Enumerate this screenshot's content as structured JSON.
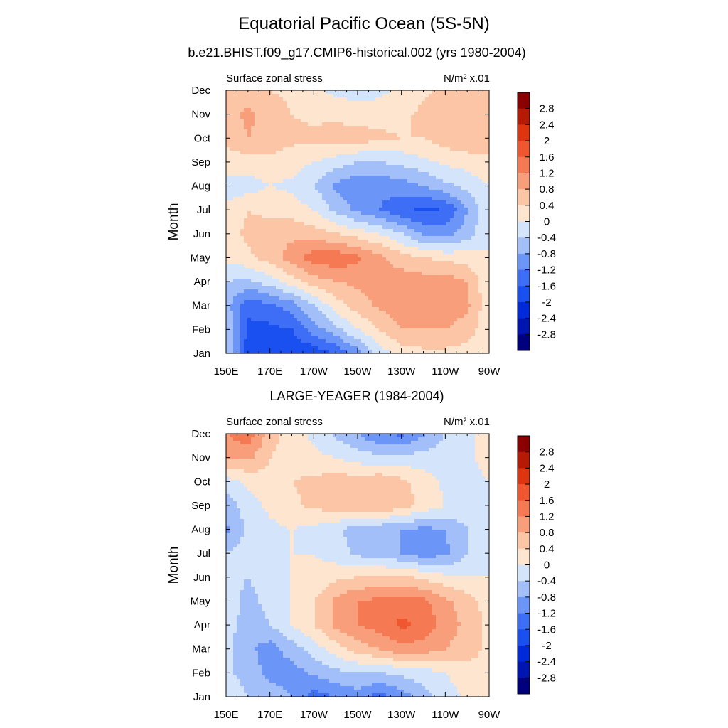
{
  "title": "Equatorial Pacific Ocean (5S-5N)",
  "colors": {
    "levels": [
      "#00007f",
      "#0014b0",
      "#0029d9",
      "#1a4ff0",
      "#3d6ef5",
      "#6b95f7",
      "#a3bffa",
      "#d4e4fb",
      "#fde5d0",
      "#fbc5a6",
      "#f89e7b",
      "#f57a53",
      "#f0562f",
      "#dc3510",
      "#b51a04",
      "#8a0000"
    ]
  },
  "chart_data": [
    {
      "type": "heatmap",
      "title": "b.e21.BHIST.f09_g17.CMIP6-historical.002 (yrs 1980-2004)",
      "left_label": "Surface zonal stress",
      "right_label": "N/m² x.01",
      "ylabel": "Month",
      "xlabel": "",
      "x": [
        150,
        160,
        170,
        180,
        190,
        200,
        210,
        220,
        230,
        240,
        250,
        260,
        270
      ],
      "x_tick_labels": [
        "150E",
        "170E",
        "170W",
        "150W",
        "130W",
        "110W",
        "90W"
      ],
      "y_tick_labels": [
        "Jan",
        "Feb",
        "Mar",
        "Apr",
        "May",
        "Jun",
        "Jul",
        "Aug",
        "Sep",
        "Oct",
        "Nov",
        "Dec"
      ],
      "xlim": [
        150,
        270
      ],
      "ylim": [
        1,
        12
      ],
      "levels": [
        -2.8,
        -2.4,
        -2.0,
        -1.6,
        -1.2,
        -0.8,
        -0.4,
        0,
        0.4,
        0.8,
        1.2,
        1.6,
        2.0,
        2.4,
        2.8
      ],
      "colorbar_labels": [
        "2.8",
        "2.4",
        "2",
        "1.6",
        "1.2",
        "0.8",
        "0.4",
        "0",
        "-0.4",
        "-0.8",
        "-1.2",
        "-1.6",
        "-2",
        "-2.4",
        "-2.8"
      ],
      "z": [
        [
          -0.4,
          -1.8,
          -1.7,
          -1.9,
          -1.9,
          -1.6,
          -1.0,
          -0.2,
          0.2,
          0.3,
          0.3,
          0.2,
          0.1
        ],
        [
          -0.4,
          -1.7,
          -1.7,
          -1.6,
          -1.0,
          -0.5,
          0.0,
          0.4,
          0.8,
          0.8,
          0.8,
          0.6,
          0.1
        ],
        [
          -0.6,
          -1.5,
          -1.3,
          -1.0,
          -0.4,
          0.2,
          0.6,
          0.9,
          1.0,
          1.1,
          1.1,
          0.9,
          0.1
        ],
        [
          -0.4,
          -0.5,
          -0.2,
          0.2,
          0.6,
          0.8,
          0.9,
          0.9,
          1.0,
          1.0,
          1.0,
          0.8,
          0.1
        ],
        [
          0.1,
          0.3,
          0.6,
          1.0,
          1.4,
          1.5,
          1.3,
          0.9,
          0.6,
          0.4,
          0.3,
          0.2,
          0.0
        ],
        [
          0.2,
          0.5,
          0.6,
          0.7,
          0.6,
          0.4,
          0.2,
          0.0,
          -0.4,
          -0.9,
          -1.0,
          -0.6,
          0.0
        ],
        [
          0.1,
          0.4,
          0.3,
          0.2,
          0.0,
          -0.5,
          -0.9,
          -1.2,
          -1.5,
          -1.7,
          -1.6,
          -0.8,
          -0.1
        ],
        [
          -0.2,
          -0.2,
          0.0,
          -0.1,
          -0.4,
          -0.9,
          -1.1,
          -1.1,
          -1.0,
          -0.8,
          -0.5,
          -0.3,
          0.0
        ],
        [
          0.2,
          0.2,
          0.3,
          0.2,
          0.0,
          -0.2,
          -0.4,
          -0.4,
          -0.3,
          -0.1,
          0.1,
          0.2,
          0.3
        ],
        [
          0.5,
          0.8,
          0.6,
          0.5,
          0.5,
          0.6,
          0.6,
          0.5,
          0.4,
          0.4,
          0.6,
          0.7,
          0.6
        ],
        [
          0.6,
          0.9,
          0.6,
          0.4,
          0.3,
          0.3,
          0.2,
          0.2,
          0.3,
          0.5,
          0.6,
          0.5,
          0.4
        ],
        [
          0.5,
          0.6,
          0.4,
          0.3,
          0.1,
          -0.1,
          -0.2,
          -0.1,
          0.1,
          0.3,
          0.5,
          0.5,
          0.4
        ]
      ]
    },
    {
      "type": "heatmap",
      "title": "LARGE-YEAGER (1984-2004)",
      "left_label": "Surface zonal stress",
      "right_label": "N/m² x.01",
      "ylabel": "Month",
      "xlabel": "",
      "x": [
        150,
        160,
        170,
        180,
        190,
        200,
        210,
        220,
        230,
        240,
        250,
        260,
        270
      ],
      "x_tick_labels": [
        "150E",
        "170E",
        "170W",
        "150W",
        "130W",
        "110W",
        "90W"
      ],
      "y_tick_labels": [
        "Jan",
        "Feb",
        "Mar",
        "Apr",
        "May",
        "Jun",
        "Jul",
        "Aug",
        "Sep",
        "Oct",
        "Nov",
        "Dec"
      ],
      "xlim": [
        150,
        270
      ],
      "ylim": [
        1,
        12
      ],
      "levels": [
        -2.8,
        -2.4,
        -2.0,
        -1.6,
        -1.2,
        -0.8,
        -0.4,
        0,
        0.4,
        0.8,
        1.2,
        1.6,
        2.0,
        2.4,
        2.8
      ],
      "colorbar_labels": [
        "2.8",
        "2.4",
        "2",
        "1.6",
        "1.2",
        "0.8",
        "0.4",
        "0",
        "-0.4",
        "-0.8",
        "-1.2",
        "-1.6",
        "-2",
        "-2.4",
        "-2.8"
      ],
      "z": [
        [
          0.0,
          -0.4,
          -0.6,
          -0.8,
          -1.4,
          -1.2,
          -1.0,
          -1.4,
          -1.0,
          -0.6,
          -0.2,
          0.1,
          0.2
        ],
        [
          -0.3,
          -0.6,
          -0.9,
          -1.0,
          -0.7,
          -0.5,
          -0.4,
          -0.4,
          -0.3,
          -0.2,
          0.0,
          0.2,
          0.3
        ],
        [
          -0.3,
          -0.7,
          -1.0,
          -0.6,
          -0.2,
          0.2,
          0.6,
          0.8,
          1.1,
          1.0,
          0.8,
          0.6,
          0.3
        ],
        [
          -0.2,
          -0.6,
          -0.4,
          0.0,
          0.4,
          0.9,
          1.2,
          1.4,
          1.7,
          1.5,
          1.0,
          0.7,
          0.3
        ],
        [
          -0.2,
          -0.5,
          -0.3,
          0.0,
          0.4,
          0.9,
          1.2,
          1.3,
          1.4,
          1.3,
          0.9,
          0.6,
          0.2
        ],
        [
          -0.3,
          -0.4,
          -0.2,
          0.0,
          0.1,
          0.3,
          0.4,
          0.5,
          0.5,
          0.3,
          0.1,
          0.0,
          0.0
        ],
        [
          -0.4,
          -0.2,
          -0.1,
          0.0,
          0.0,
          -0.2,
          -0.5,
          -0.6,
          -0.8,
          -1.0,
          -0.9,
          -0.4,
          -0.1
        ],
        [
          -0.9,
          -0.3,
          -0.1,
          0.0,
          -0.1,
          -0.3,
          -0.6,
          -0.7,
          -0.8,
          -0.9,
          -0.8,
          -0.4,
          -0.1
        ],
        [
          -0.6,
          -0.2,
          0.1,
          0.3,
          0.5,
          0.6,
          0.7,
          0.8,
          0.6,
          0.3,
          0.0,
          -0.1,
          0.0
        ],
        [
          -0.2,
          0.1,
          0.3,
          0.4,
          0.5,
          0.6,
          0.6,
          0.7,
          0.5,
          0.2,
          -0.1,
          -0.2,
          0.0
        ],
        [
          0.8,
          0.9,
          0.4,
          0.2,
          0.1,
          0.0,
          -0.2,
          -0.3,
          -0.3,
          -0.2,
          -0.2,
          -0.1,
          0.2
        ],
        [
          1.2,
          1.5,
          0.6,
          0.2,
          -0.1,
          -0.5,
          -0.8,
          -1.2,
          -1.3,
          -0.9,
          -0.4,
          -0.1,
          0.2
        ]
      ]
    }
  ]
}
